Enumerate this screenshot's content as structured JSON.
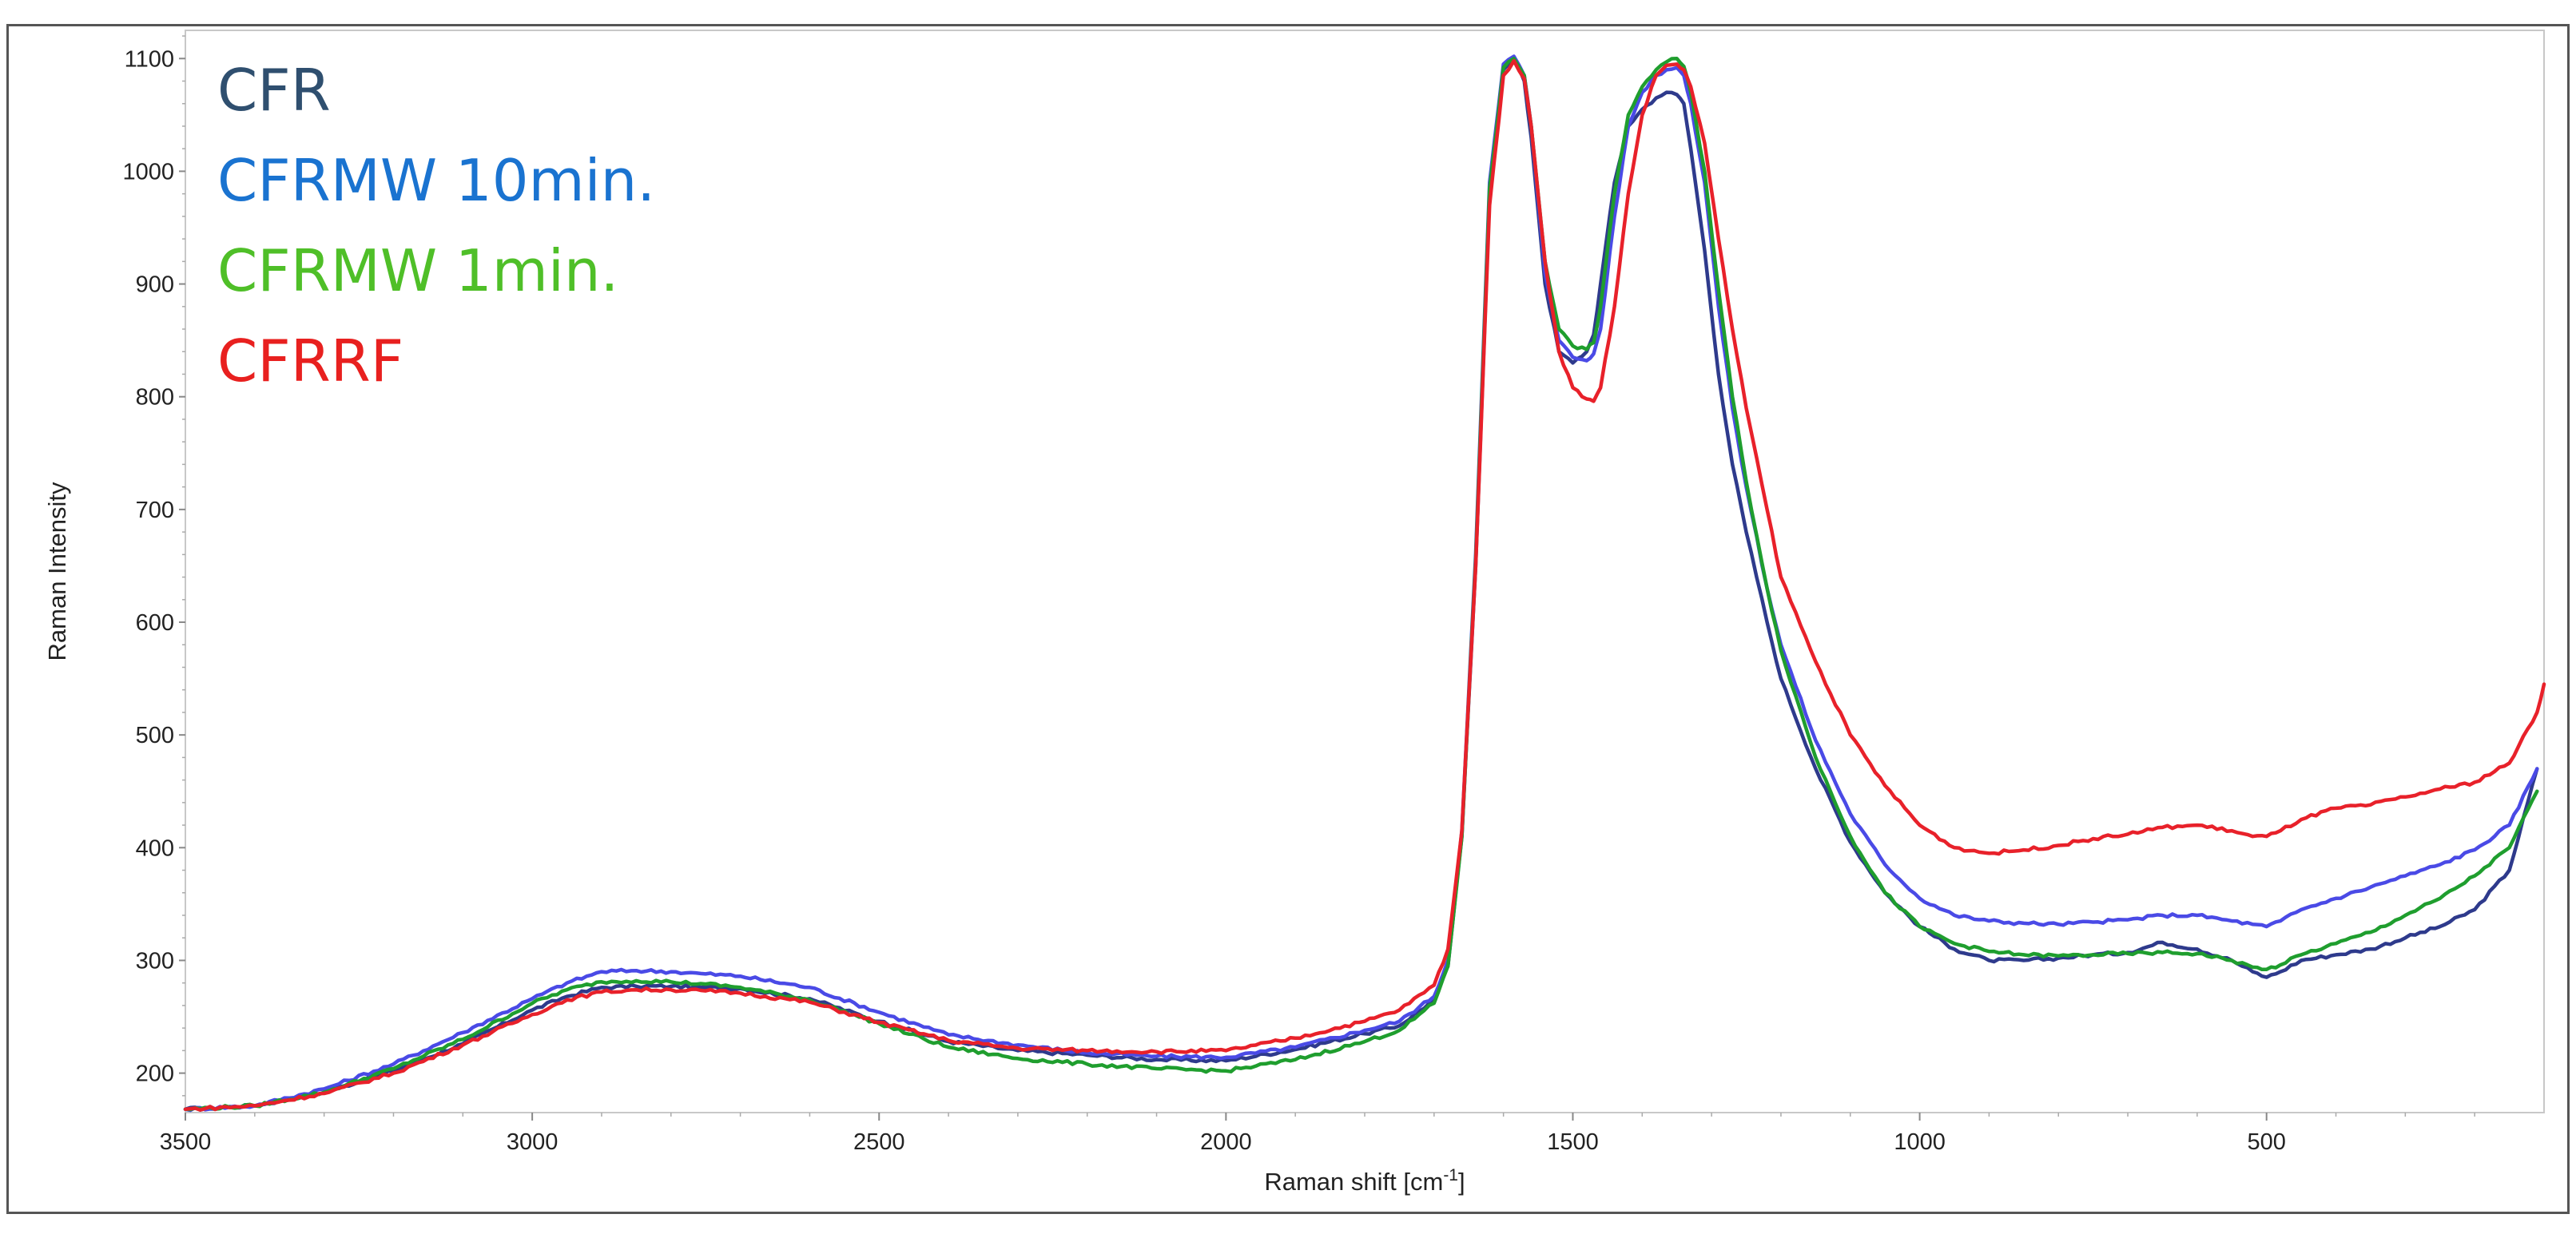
{
  "chart_data": {
    "type": "line",
    "title": "",
    "xlabel": "Raman shift [cm",
    "xlabel_sup": "-1",
    "xlabel_tail": "]",
    "ylabel": "Raman Intensity",
    "xlim": [
      3500,
      100
    ],
    "ylim": [
      165,
      1125
    ],
    "x_reversed": true,
    "grid": false,
    "legend_position": "top-left",
    "x_ticks": [
      3500,
      3000,
      2500,
      2000,
      1500,
      1000,
      500
    ],
    "y_ticks": [
      200,
      300,
      400,
      500,
      600,
      700,
      800,
      900,
      1000,
      1100
    ],
    "series": [
      {
        "name": "CFR",
        "color": "#2e3a8c",
        "legend_color": "#2f4f6f",
        "x": [
          3500,
          3400,
          3300,
          3200,
          3100,
          3000,
          2950,
          2900,
          2850,
          2800,
          2750,
          2700,
          2600,
          2500,
          2400,
          2300,
          2200,
          2100,
          2000,
          1900,
          1800,
          1750,
          1700,
          1680,
          1660,
          1640,
          1620,
          1600,
          1585,
          1570,
          1560,
          1540,
          1520,
          1500,
          1480,
          1470,
          1460,
          1440,
          1420,
          1400,
          1380,
          1365,
          1350,
          1340,
          1330,
          1310,
          1290,
          1270,
          1250,
          1220,
          1200,
          1150,
          1100,
          1050,
          1000,
          950,
          900,
          850,
          800,
          750,
          700,
          650,
          600,
          550,
          520,
          500,
          480,
          450,
          400,
          350,
          300,
          250,
          200,
          150,
          110
        ],
        "values": [
          168,
          171,
          183,
          202,
          226,
          256,
          268,
          276,
          277,
          277,
          276,
          275,
          266,
          246,
          228,
          220,
          216,
          212,
          211,
          221,
          235,
          242,
          265,
          295,
          410,
          650,
          980,
          1090,
          1100,
          1080,
          1030,
          900,
          840,
          830,
          840,
          855,
          900,
          990,
          1040,
          1055,
          1065,
          1070,
          1068,
          1060,
          1020,
          930,
          820,
          740,
          680,
          600,
          550,
          470,
          405,
          360,
          330,
          310,
          300,
          300,
          302,
          305,
          307,
          316,
          310,
          300,
          290,
          285,
          290,
          300,
          305,
          310,
          320,
          330,
          345,
          380,
          470
        ]
      },
      {
        "name": "CFRMW 10min.",
        "color": "#4a4ae6",
        "legend_color": "#1a73d0",
        "x": [
          3500,
          3400,
          3300,
          3200,
          3100,
          3000,
          2950,
          2900,
          2850,
          2800,
          2750,
          2700,
          2600,
          2500,
          2400,
          2300,
          2200,
          2100,
          2000,
          1900,
          1800,
          1750,
          1700,
          1680,
          1660,
          1640,
          1620,
          1600,
          1585,
          1570,
          1560,
          1540,
          1520,
          1500,
          1480,
          1470,
          1460,
          1440,
          1420,
          1400,
          1380,
          1365,
          1350,
          1340,
          1330,
          1310,
          1290,
          1270,
          1250,
          1220,
          1200,
          1150,
          1100,
          1050,
          1000,
          950,
          900,
          850,
          800,
          750,
          700,
          650,
          600,
          550,
          520,
          500,
          480,
          450,
          400,
          350,
          300,
          250,
          200,
          150,
          110
        ],
        "values": [
          168,
          171,
          186,
          208,
          236,
          266,
          280,
          290,
          291,
          290,
          288,
          286,
          276,
          254,
          234,
          225,
          218,
          215,
          214,
          223,
          238,
          246,
          268,
          300,
          415,
          660,
          990,
          1095,
          1102,
          1085,
          1040,
          910,
          850,
          835,
          832,
          838,
          860,
          960,
          1040,
          1070,
          1085,
          1090,
          1092,
          1085,
          1060,
          990,
          880,
          790,
          720,
          630,
          580,
          495,
          430,
          385,
          355,
          340,
          335,
          333,
          332,
          334,
          336,
          340,
          340,
          335,
          332,
          330,
          335,
          345,
          355,
          365,
          375,
          385,
          398,
          420,
          470
        ]
      },
      {
        "name": "CFRMW 1min.",
        "color": "#1f9e2e",
        "legend_color": "#4fbf28",
        "x": [
          3500,
          3400,
          3300,
          3200,
          3100,
          3000,
          2950,
          2900,
          2850,
          2800,
          2750,
          2700,
          2600,
          2500,
          2400,
          2300,
          2200,
          2100,
          2000,
          1900,
          1800,
          1750,
          1700,
          1680,
          1660,
          1640,
          1620,
          1600,
          1585,
          1570,
          1560,
          1540,
          1520,
          1500,
          1480,
          1470,
          1460,
          1440,
          1420,
          1400,
          1380,
          1365,
          1350,
          1340,
          1330,
          1310,
          1290,
          1270,
          1250,
          1220,
          1200,
          1150,
          1100,
          1050,
          1000,
          950,
          900,
          850,
          800,
          750,
          700,
          650,
          600,
          550,
          520,
          500,
          480,
          450,
          400,
          350,
          300,
          250,
          200,
          150,
          110
        ],
        "values": [
          168,
          171,
          183,
          204,
          230,
          262,
          274,
          281,
          282,
          281,
          279,
          276,
          265,
          244,
          223,
          213,
          208,
          204,
          202,
          212,
          228,
          238,
          262,
          295,
          410,
          655,
          985,
          1092,
          1100,
          1085,
          1040,
          920,
          860,
          845,
          842,
          848,
          880,
          980,
          1050,
          1075,
          1090,
          1097,
          1100,
          1093,
          1070,
          1000,
          895,
          800,
          725,
          630,
          575,
          480,
          410,
          360,
          330,
          315,
          308,
          305,
          304,
          305,
          306,
          307,
          306,
          300,
          294,
          292,
          296,
          305,
          315,
          325,
          340,
          355,
          375,
          400,
          450
        ]
      },
      {
        "name": "CFRRF",
        "color": "#e8212a",
        "legend_color": "#e8201f",
        "x": [
          3500,
          3400,
          3300,
          3200,
          3100,
          3000,
          2950,
          2900,
          2850,
          2800,
          2750,
          2700,
          2600,
          2500,
          2400,
          2300,
          2200,
          2100,
          2000,
          1900,
          1800,
          1750,
          1700,
          1680,
          1660,
          1640,
          1620,
          1600,
          1585,
          1570,
          1560,
          1540,
          1520,
          1500,
          1480,
          1470,
          1460,
          1440,
          1420,
          1400,
          1380,
          1365,
          1350,
          1340,
          1330,
          1310,
          1290,
          1270,
          1250,
          1220,
          1200,
          1150,
          1100,
          1050,
          1000,
          950,
          900,
          850,
          800,
          750,
          700,
          650,
          600,
          550,
          520,
          500,
          480,
          450,
          400,
          350,
          300,
          250,
          200,
          150,
          110,
          100
        ],
        "values": [
          168,
          171,
          182,
          200,
          225,
          252,
          265,
          272,
          274,
          274,
          273,
          271,
          263,
          245,
          229,
          222,
          220,
          219,
          220,
          231,
          246,
          256,
          278,
          310,
          415,
          650,
          970,
          1085,
          1098,
          1082,
          1040,
          920,
          840,
          808,
          798,
          796,
          808,
          880,
          980,
          1050,
          1085,
          1094,
          1095,
          1090,
          1075,
          1025,
          940,
          860,
          790,
          700,
          640,
          565,
          500,
          455,
          420,
          400,
          395,
          398,
          402,
          408,
          412,
          418,
          420,
          415,
          410,
          410,
          415,
          425,
          435,
          438,
          445,
          452,
          458,
          475,
          520,
          545
        ]
      }
    ]
  }
}
